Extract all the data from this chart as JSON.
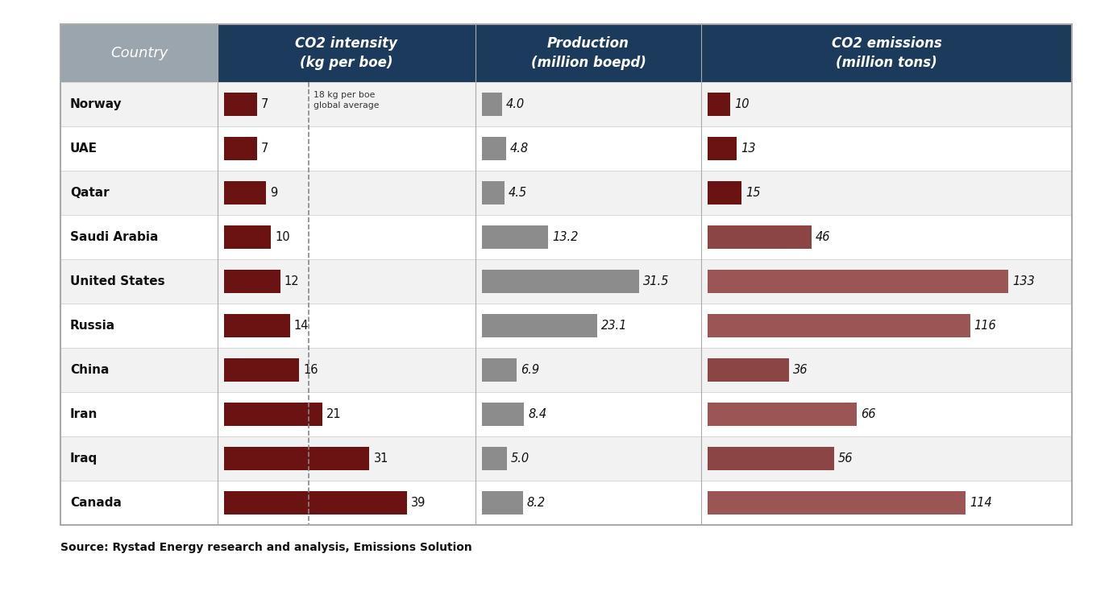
{
  "countries": [
    "Norway",
    "UAE",
    "Qatar",
    "Saudi Arabia",
    "United States",
    "Russia",
    "China",
    "Iran",
    "Iraq",
    "Canada"
  ],
  "co2_intensity": [
    7,
    7,
    9,
    10,
    12,
    14,
    16,
    21,
    31,
    39
  ],
  "production": [
    4.0,
    4.8,
    4.5,
    13.2,
    31.5,
    23.1,
    6.9,
    8.4,
    5.0,
    8.2
  ],
  "co2_emissions": [
    10,
    13,
    15,
    46,
    133,
    116,
    36,
    66,
    56,
    114
  ],
  "production_labels": [
    "4.0",
    "4.8",
    "4.5",
    "13.2",
    "31.5",
    "23.1",
    "6.9",
    "8.4",
    "5.0",
    "8.2"
  ],
  "global_average_line": 18,
  "source_text": "Source: Rystad Energy research and analysis, Emissions Solution",
  "header_bg": "#1b3a5c",
  "country_header_bg": "#9aa5ad",
  "co2_bar_color": "#6b1212",
  "production_bar_color": "#8c8c8c",
  "emission_colors": [
    "#6b1212",
    "#6b1212",
    "#6b1212",
    "#8b4545",
    "#9b5555",
    "#9b5555",
    "#8b4545",
    "#9b5555",
    "#8b4545",
    "#9b5555"
  ],
  "row_bg_even": "#f2f2f2",
  "row_bg_odd": "#ffffff",
  "border_color": "#cccccc",
  "co2_intensity_max": 45,
  "production_max": 35,
  "co2_emissions_max": 145,
  "global_avg_annotation": "18 kg per boe\nglobal average"
}
